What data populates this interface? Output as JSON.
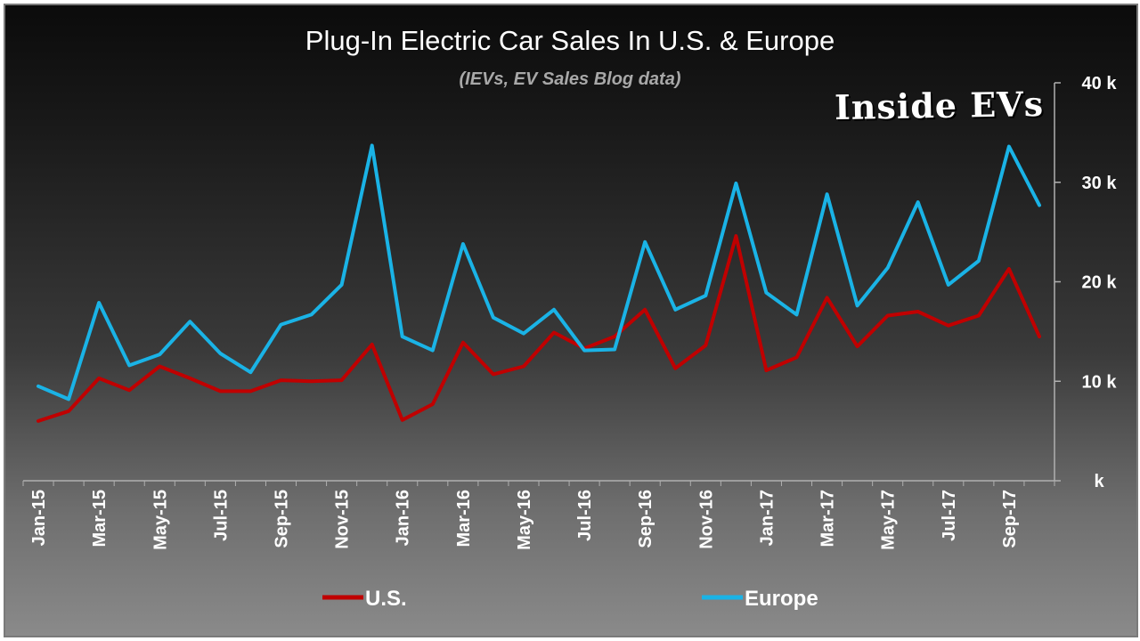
{
  "chart_data": {
    "type": "line",
    "title": "Plug-In Electric Car Sales In U.S. & Europe",
    "subtitle": "(IEVs, EV Sales Blog data)",
    "brand": "Inside EVs",
    "xlabel": "",
    "ylabel": "",
    "ylim": [
      0,
      40000
    ],
    "y_ticks": [
      {
        "value": 0,
        "label": "k"
      },
      {
        "value": 10000,
        "label": "10 k"
      },
      {
        "value": 20000,
        "label": "20 k"
      },
      {
        "value": 30000,
        "label": "30 k"
      },
      {
        "value": 40000,
        "label": "40 k"
      }
    ],
    "y_axis_position": "right",
    "categories": [
      "Jan-15",
      "Feb-15",
      "Mar-15",
      "Apr-15",
      "May-15",
      "Jun-15",
      "Jul-15",
      "Aug-15",
      "Sep-15",
      "Oct-15",
      "Nov-15",
      "Dec-15",
      "Jan-16",
      "Feb-16",
      "Mar-16",
      "Apr-16",
      "May-16",
      "Jun-16",
      "Jul-16",
      "Aug-16",
      "Sep-16",
      "Oct-16",
      "Nov-16",
      "Dec-16",
      "Jan-17",
      "Feb-17",
      "Mar-17",
      "Apr-17",
      "May-17",
      "Jun-17",
      "Jul-17",
      "Aug-17",
      "Sep-17",
      "Oct-17"
    ],
    "tick_labels": [
      "Jan-15",
      "Mar-15",
      "May-15",
      "Jul-15",
      "Sep-15",
      "Nov-15",
      "Jan-16",
      "Mar-16",
      "May-16",
      "Jul-16",
      "Sep-16",
      "Nov-16",
      "Jan-17",
      "Mar-17",
      "May-17",
      "Jul-17",
      "Sep-17"
    ],
    "series": [
      {
        "name": "U.S.",
        "color": "#c00000",
        "values": [
          6000,
          7000,
          10300,
          9100,
          11500,
          10300,
          9000,
          9000,
          10100,
          10000,
          10100,
          13700,
          6100,
          7700,
          13900,
          10700,
          11500,
          14900,
          13300,
          14500,
          17200,
          11300,
          13600,
          24600,
          11100,
          12400,
          18400,
          13500,
          16600,
          17000,
          15600,
          16600,
          21300,
          14500
        ]
      },
      {
        "name": "Europe",
        "color": "#1ab3e6",
        "values": [
          9500,
          8200,
          17900,
          11600,
          12700,
          16000,
          12800,
          10900,
          15700,
          16700,
          19700,
          33700,
          14500,
          13100,
          23800,
          16400,
          14800,
          17200,
          13100,
          13200,
          24000,
          17200,
          18600,
          29900,
          18900,
          16700,
          28800,
          17600,
          21400,
          28000,
          19700,
          22100,
          33600,
          27700
        ]
      }
    ],
    "legend": {
      "position": "bottom",
      "entries": [
        "U.S.",
        "Europe"
      ]
    }
  }
}
